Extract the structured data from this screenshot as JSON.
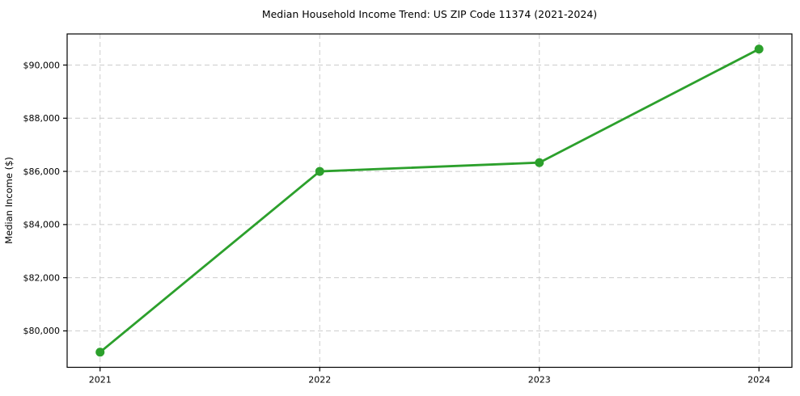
{
  "title": "Median Household Income Trend: US ZIP Code 11374 (2021-2024)",
  "chart_data": {
    "type": "line",
    "title": "Median Household Income Trend: US ZIP Code 11374 (2021-2024)",
    "xlabel": "",
    "ylabel": "Median Income ($)",
    "x": [
      2021,
      2022,
      2023,
      2024
    ],
    "series": [
      {
        "name": "Median Household Income",
        "values": [
          79200,
          86000,
          86330,
          90600
        ],
        "color": "#2ca02c",
        "marker": "circle",
        "line_width": 2.8,
        "marker_radius": 5.5
      }
    ],
    "xticks": [
      2021,
      2022,
      2023,
      2024
    ],
    "xtick_labels": [
      "2021",
      "2022",
      "2023",
      "2024"
    ],
    "yticks": [
      80000,
      82000,
      84000,
      86000,
      88000,
      90000
    ],
    "ytick_labels": [
      "$80,000",
      "$82,000",
      "$84,000",
      "$86,000",
      "$90,000"
    ],
    "ytick_labels_full": [
      "$80,000",
      "$82,000",
      "$84,000",
      "$86,000",
      "$88,000",
      "$90,000"
    ],
    "xlim": [
      2020.85,
      2024.15
    ],
    "ylim": [
      78630,
      91170
    ],
    "grid": true,
    "grid_style": "dashed",
    "legend_position": "none",
    "colors": {
      "line": "#2ca02c",
      "grid": "#cccccc",
      "spine": "#000000",
      "tick": "#000000",
      "background": "#ffffff",
      "text": "#000000"
    }
  }
}
